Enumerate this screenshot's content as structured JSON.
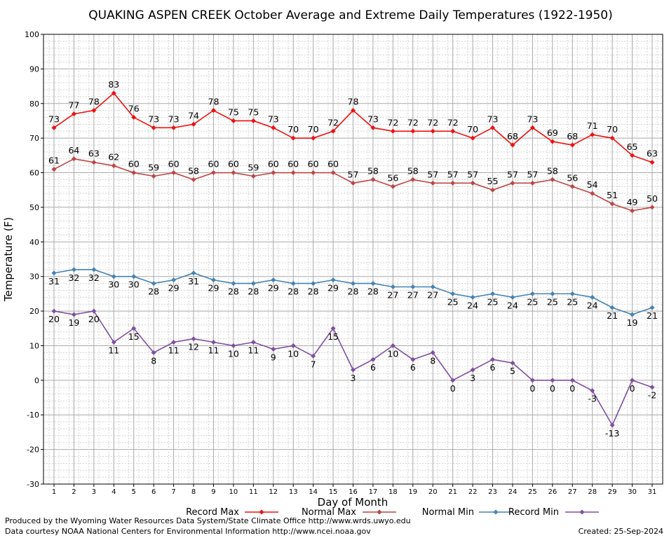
{
  "chart_data": {
    "type": "line",
    "title": "QUAKING ASPEN CREEK October Average and Extreme Daily Temperatures (1922-1950)",
    "xlabel": "Day of Month",
    "ylabel": "Temperature (F)",
    "ylim": [
      -30,
      100
    ],
    "yticks": [
      -30,
      -20,
      -10,
      0,
      10,
      20,
      30,
      40,
      50,
      60,
      70,
      80,
      90,
      100
    ],
    "grid": true,
    "legend_position": "bottom",
    "x": [
      1,
      2,
      3,
      4,
      5,
      6,
      7,
      8,
      9,
      10,
      11,
      12,
      13,
      14,
      15,
      16,
      17,
      18,
      19,
      20,
      21,
      22,
      23,
      24,
      25,
      26,
      27,
      28,
      29,
      30,
      31
    ],
    "series": [
      {
        "name": "Record Max",
        "color": "#ee1111",
        "label_pos": "above",
        "values": [
          73,
          77,
          78,
          83,
          76,
          73,
          73,
          74,
          78,
          75,
          75,
          73,
          70,
          70,
          72,
          78,
          73,
          72,
          72,
          72,
          72,
          70,
          73,
          68,
          73,
          69,
          68,
          71,
          70,
          65,
          63
        ]
      },
      {
        "name": "Normal Max",
        "color": "#c04444",
        "label_pos": "above",
        "values": [
          61,
          64,
          63,
          62,
          60,
          59,
          60,
          58,
          60,
          60,
          59,
          60,
          60,
          60,
          60,
          57,
          58,
          56,
          58,
          57,
          57,
          57,
          55,
          57,
          57,
          58,
          56,
          54,
          51,
          49,
          50
        ]
      },
      {
        "name": "Normal Min",
        "color": "#4682b4",
        "label_pos": "below",
        "values": [
          31,
          32,
          32,
          30,
          30,
          28,
          29,
          31,
          29,
          28,
          28,
          29,
          28,
          28,
          29,
          28,
          28,
          27,
          27,
          27,
          25,
          24,
          25,
          24,
          25,
          25,
          25,
          24,
          21,
          19,
          21
        ]
      },
      {
        "name": "Record Min",
        "color": "#7f4f9f",
        "label_pos": "below",
        "values": [
          20,
          19,
          20,
          11,
          15,
          8,
          11,
          12,
          11,
          10,
          11,
          9,
          10,
          7,
          15,
          3,
          6,
          10,
          6,
          8,
          0,
          3,
          6,
          5,
          0,
          0,
          0,
          -3,
          -13,
          0,
          -2
        ]
      }
    ]
  },
  "footer": {
    "produced_by": "Produced by the Wyoming Water Resources Data System/State Climate Office http://www.wrds.uwyo.edu",
    "data_courtesy": "Data courtesy NOAA National Centers for Environmental Information http://www.ncei.noaa.gov",
    "created": "Created:  25-Sep-2024"
  }
}
